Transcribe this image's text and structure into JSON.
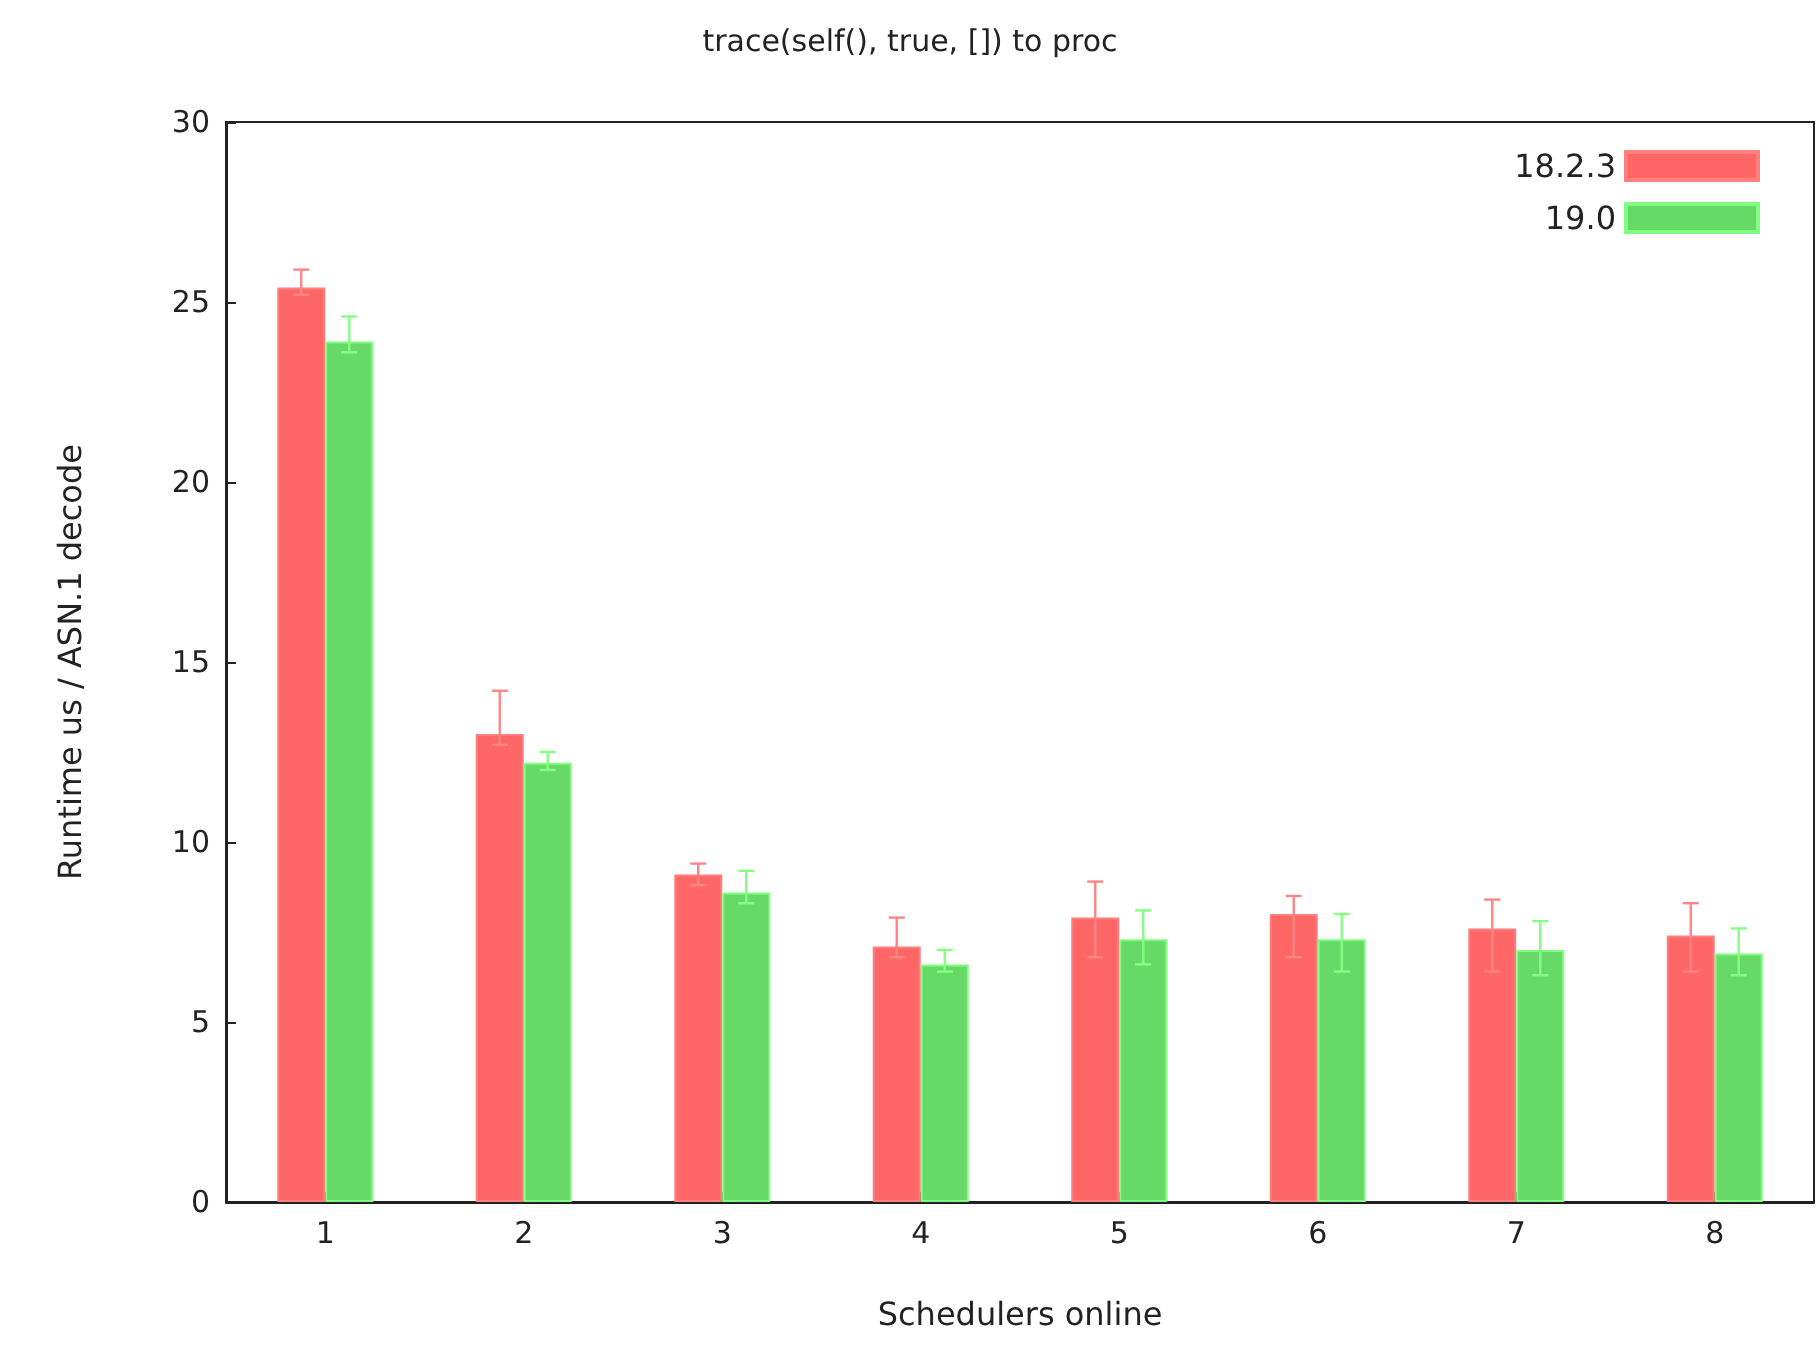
{
  "chart_data": {
    "type": "bar",
    "title": "trace(self(), true, []) to proc",
    "xlabel": "Schedulers online",
    "ylabel": "Runtime us / ASN.1 decode",
    "categories": [
      "1",
      "2",
      "3",
      "4",
      "5",
      "6",
      "7",
      "8"
    ],
    "series": [
      {
        "name": "18.2.3",
        "color": "#ff6666",
        "values": [
          25.4,
          13.0,
          9.1,
          7.1,
          7.9,
          8.0,
          7.6,
          7.4
        ],
        "errors": [
          [
            25.2,
            25.9
          ],
          [
            12.7,
            14.2
          ],
          [
            8.8,
            9.4
          ],
          [
            6.8,
            7.9
          ],
          [
            6.8,
            8.9
          ],
          [
            6.8,
            8.5
          ],
          [
            6.4,
            8.4
          ],
          [
            6.4,
            8.3
          ]
        ]
      },
      {
        "name": "19.0",
        "color": "#66d966",
        "values": [
          23.9,
          12.2,
          8.6,
          6.6,
          7.3,
          7.3,
          7.0,
          6.9
        ],
        "errors": [
          [
            23.6,
            24.6
          ],
          [
            12.0,
            12.5
          ],
          [
            8.3,
            9.2
          ],
          [
            6.4,
            7.0
          ],
          [
            6.6,
            8.1
          ],
          [
            6.4,
            8.0
          ],
          [
            6.3,
            7.8
          ],
          [
            6.3,
            7.6
          ]
        ]
      }
    ],
    "ylim": [
      0,
      30
    ],
    "yticks": [
      0,
      5,
      10,
      15,
      20,
      25,
      30
    ],
    "grid": false,
    "legend": "top right"
  }
}
